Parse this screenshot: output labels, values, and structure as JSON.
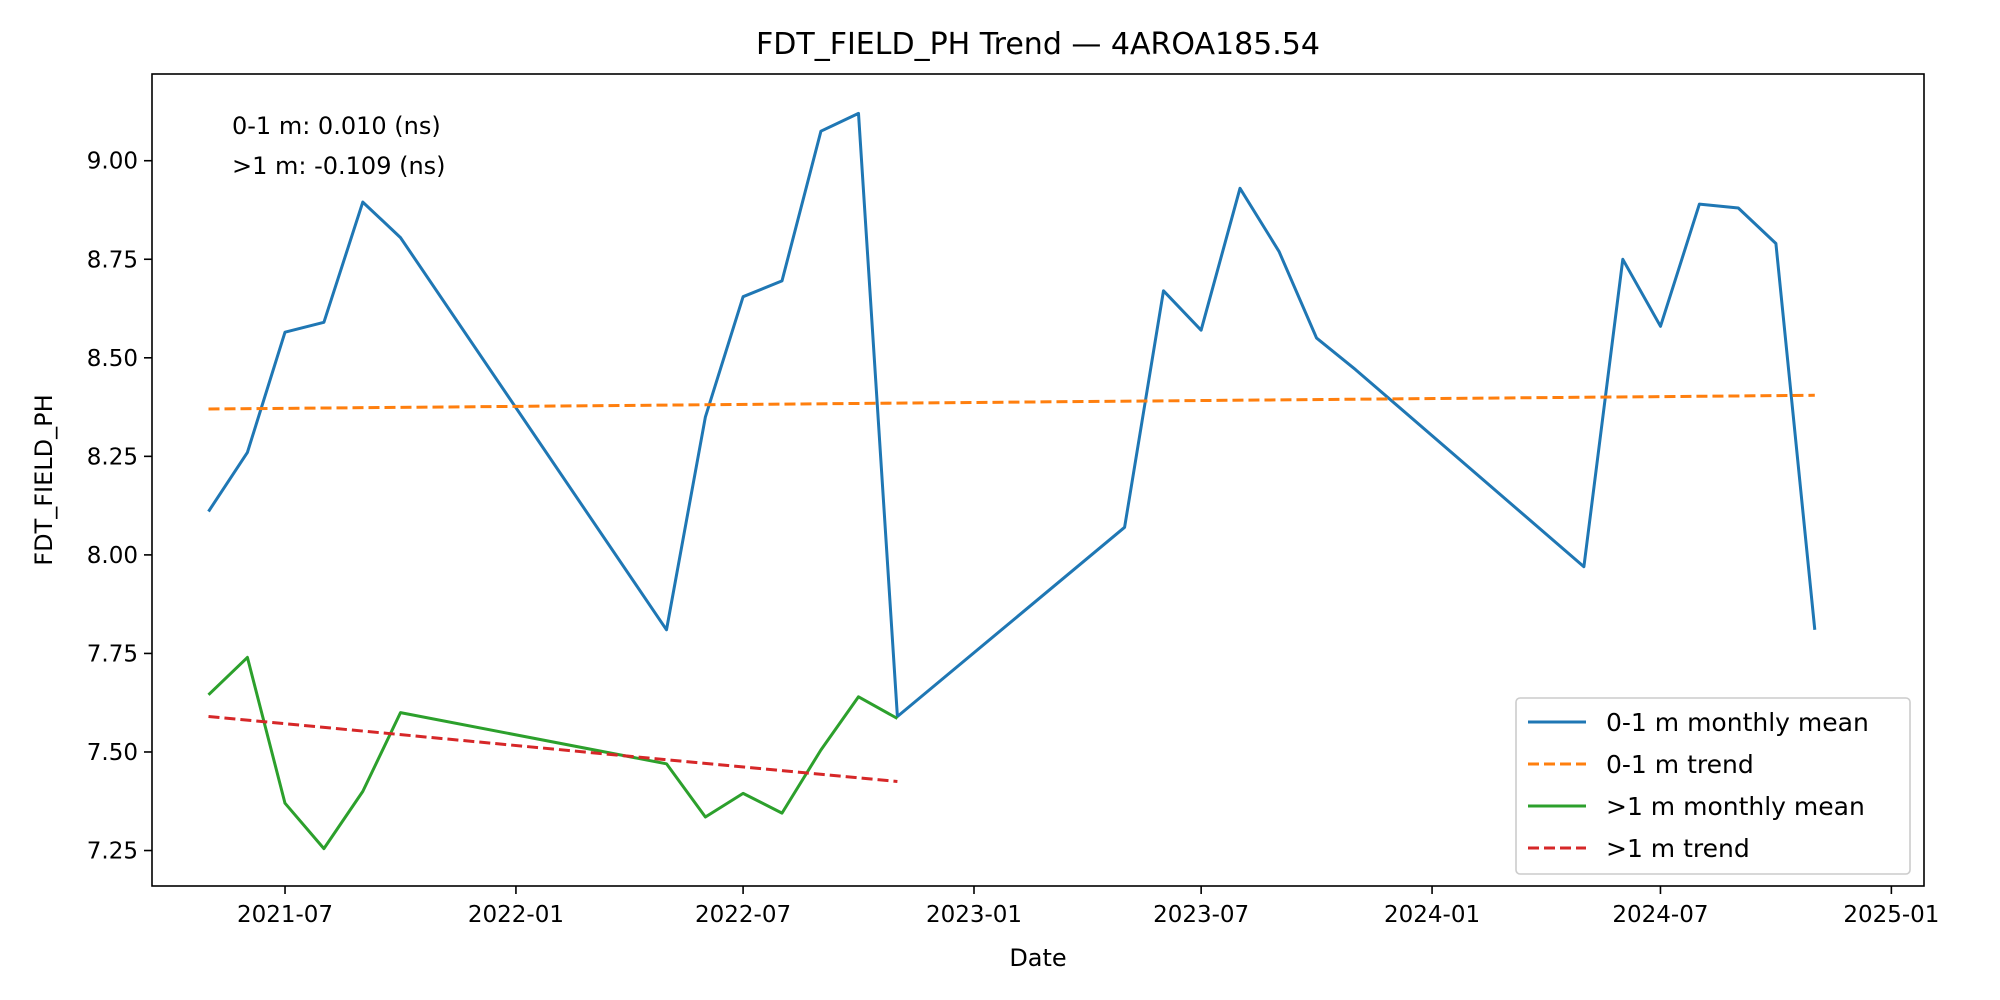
{
  "chart_data": {
    "type": "line",
    "title": "FDT_FIELD_PH Trend — 4AROA185.54",
    "xlabel": "Date",
    "ylabel": "FDT_FIELD_PH",
    "xlim": [
      "2021-03-17",
      "2025-01-27"
    ],
    "ylim": [
      7.16,
      9.22
    ],
    "x_ticks": [
      "2021-07-01",
      "2022-01-01",
      "2022-07-01",
      "2023-01-01",
      "2023-07-01",
      "2024-01-01",
      "2024-07-01",
      "2025-01-01"
    ],
    "x_tick_labels": [
      "2021-07",
      "2022-01",
      "2022-07",
      "2023-01",
      "2023-07",
      "2024-01",
      "2024-07",
      "2025-01"
    ],
    "y_ticks": [
      7.25,
      7.5,
      7.75,
      8.0,
      8.25,
      8.5,
      8.75,
      9.0
    ],
    "y_tick_labels": [
      "7.25",
      "7.50",
      "7.75",
      "8.00",
      "8.25",
      "8.50",
      "8.75",
      "9.00"
    ],
    "grid": false,
    "legend_position": "lower-right",
    "annotations": [
      "0-1 m: 0.010 (ns)",
      ">1 m: -0.109 (ns)"
    ],
    "series": [
      {
        "name": "0-1 m monthly mean",
        "color": "#1f77b4",
        "style": "solid",
        "x": [
          "2021-05-01",
          "2021-06-01",
          "2021-07-01",
          "2021-08-01",
          "2021-09-01",
          "2021-10-01",
          "2022-05-01",
          "2022-06-01",
          "2022-07-01",
          "2022-08-01",
          "2022-09-01",
          "2022-10-01",
          "2022-11-01",
          "2023-05-01",
          "2023-06-01",
          "2023-07-01",
          "2023-08-01",
          "2023-09-01",
          "2023-10-01",
          "2023-11-01",
          "2024-05-01",
          "2024-06-01",
          "2024-07-01",
          "2024-08-01",
          "2024-09-01",
          "2024-10-01",
          "2024-11-01"
        ],
        "values": [
          8.11,
          8.26,
          8.565,
          8.59,
          8.895,
          8.805,
          7.81,
          8.35,
          8.655,
          8.695,
          9.075,
          9.12,
          7.59,
          8.07,
          8.67,
          8.57,
          8.93,
          8.77,
          8.55,
          8.47,
          7.97,
          8.75,
          8.58,
          8.89,
          8.88,
          8.79,
          7.81
        ]
      },
      {
        "name": "0-1 m trend",
        "color": "#ff7f0e",
        "style": "dashed",
        "x": [
          "2021-05-01",
          "2024-11-01"
        ],
        "values": [
          8.37,
          8.405
        ]
      },
      {
        "name": ">1 m monthly mean",
        "color": "#2ca02c",
        "style": "solid",
        "x": [
          "2021-05-01",
          "2021-06-01",
          "2021-07-01",
          "2021-08-01",
          "2021-09-01",
          "2021-10-01",
          "2022-05-01",
          "2022-06-01",
          "2022-07-01",
          "2022-08-01",
          "2022-09-01",
          "2022-10-01",
          "2022-11-01"
        ],
        "values": [
          7.645,
          7.74,
          7.37,
          7.255,
          7.4,
          7.6,
          7.47,
          7.335,
          7.395,
          7.345,
          7.505,
          7.64,
          7.585
        ]
      },
      {
        "name": ">1 m trend",
        "color": "#d62728",
        "style": "dashed",
        "x": [
          "2021-05-01",
          "2022-11-01"
        ],
        "values": [
          7.59,
          7.425
        ]
      }
    ]
  }
}
